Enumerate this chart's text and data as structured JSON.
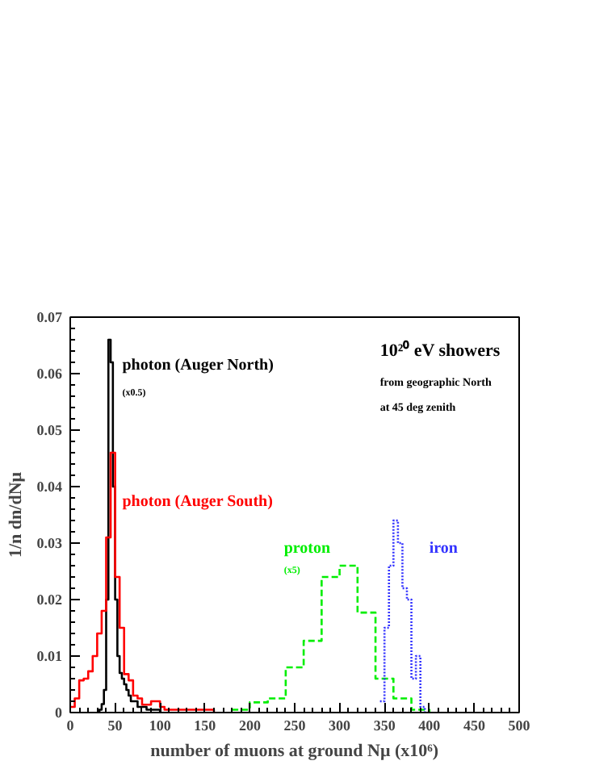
{
  "chart_data": {
    "type": "step",
    "xlabel": "number of muons at ground Nμ (x10⁶)",
    "ylabel": "1/n dn/dNμ",
    "xlim": [
      0,
      500
    ],
    "ylim": [
      0,
      0.07
    ],
    "xticks": [
      0,
      50,
      100,
      150,
      200,
      250,
      300,
      350,
      400,
      450,
      500
    ],
    "yticks": [
      0,
      0.01,
      0.02,
      0.03,
      0.04,
      0.05,
      0.06,
      0.07
    ],
    "grid": false,
    "annotations": [
      "(x0.5)",
      "(x5)",
      "10²⁰ eV showers",
      "from geographic North",
      "at 45 deg zenith"
    ],
    "series": [
      {
        "name": "photon (Auger North)",
        "color": "#000000",
        "line_style": "solid",
        "x": [
          30,
          32.5,
          35,
          37.5,
          40,
          42.5,
          45,
          47.5,
          50,
          52.5,
          55,
          57.5,
          60,
          62.5,
          65,
          67.5,
          70,
          72.5,
          75,
          80,
          85,
          90,
          95,
          100
        ],
        "values": [
          0,
          0.0005,
          0.0015,
          0.004,
          0.02,
          0.066,
          0.062,
          0.04,
          0.02,
          0.01,
          0.007,
          0.006,
          0.005,
          0.004,
          0.003,
          0.002,
          0.002,
          0.002,
          0.001,
          0.001,
          0.0005,
          0.0005,
          0.0005,
          0
        ]
      },
      {
        "name": "photon (Auger South)",
        "color": "#ff0000",
        "line_style": "solid",
        "x": [
          0,
          5,
          10,
          15,
          20,
          25,
          30,
          35,
          40,
          45,
          50,
          55,
          60,
          65,
          70,
          75,
          80,
          85,
          90,
          95,
          100,
          105,
          120,
          140,
          160
        ],
        "values": [
          0.001,
          0.0025,
          0.0057,
          0.006,
          0.0073,
          0.01,
          0.014,
          0.018,
          0.031,
          0.046,
          0.024,
          0.015,
          0.0068,
          0.0057,
          0.003,
          0.0025,
          0.0014,
          0.0014,
          0.002,
          0.002,
          0.001,
          0.0005,
          0.0005,
          0.0005,
          0
        ]
      },
      {
        "name": "proton",
        "color": "#00ee00",
        "line_style": "dashed",
        "x": [
          180,
          200,
          220,
          240,
          260,
          280,
          300,
          320,
          340,
          360,
          380,
          400
        ],
        "values": [
          0.0005,
          0.0018,
          0.0025,
          0.008,
          0.0127,
          0.024,
          0.026,
          0.0177,
          0.006,
          0.0025,
          0.0005,
          0
        ]
      },
      {
        "name": "iron",
        "color": "#3333ff",
        "line_style": "dotted",
        "x": [
          345,
          350,
          355,
          360,
          365,
          370,
          375,
          380,
          385,
          390,
          395
        ],
        "values": [
          0.002,
          0.015,
          0.026,
          0.034,
          0.03,
          0.022,
          0.02,
          0.006,
          0.01,
          0.001,
          0
        ]
      }
    ]
  }
}
